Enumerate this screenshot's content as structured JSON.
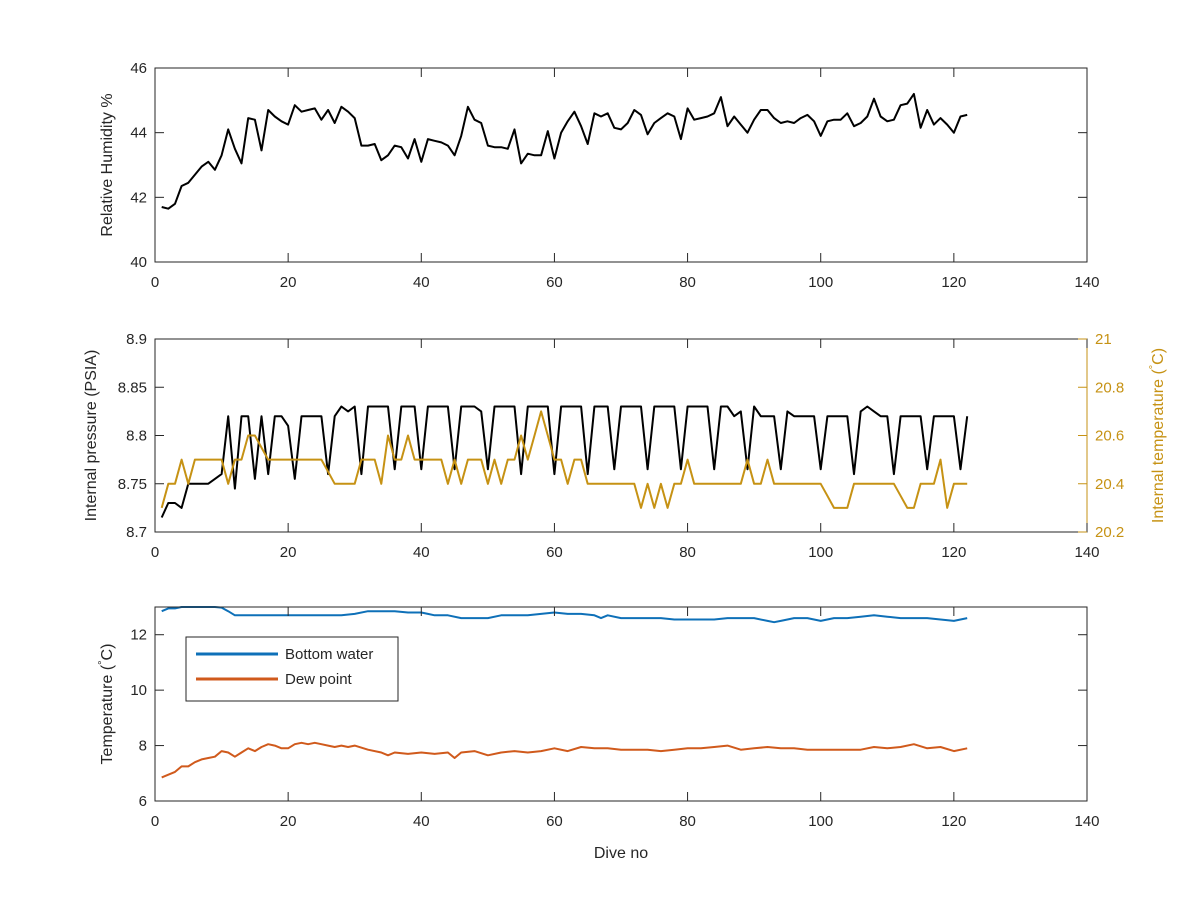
{
  "chart_data": [
    {
      "type": "line",
      "xlabel": "",
      "ylabel": "Relative Humidity %",
      "xlim": [
        0,
        140
      ],
      "ylim": [
        40,
        46
      ],
      "xticks": [
        0,
        20,
        40,
        60,
        80,
        100,
        120,
        140
      ],
      "yticks": [
        40,
        42,
        44,
        46
      ],
      "grid": false,
      "series": [
        {
          "color": "#000000",
          "x": [
            1,
            2,
            3,
            4,
            5,
            6,
            7,
            8,
            9,
            10,
            11,
            12,
            13,
            14,
            15,
            16,
            17,
            18,
            19,
            20,
            21,
            22,
            23,
            24,
            25,
            26,
            27,
            28,
            29,
            30,
            31,
            32,
            33,
            34,
            35,
            36,
            37,
            38,
            39,
            40,
            41,
            42,
            43,
            44,
            45,
            46,
            47,
            48,
            49,
            50,
            51,
            52,
            53,
            54,
            55,
            56,
            57,
            58,
            59,
            60,
            61,
            62,
            63,
            64,
            65,
            66,
            67,
            68,
            69,
            70,
            71,
            72,
            73,
            74,
            75,
            76,
            77,
            78,
            79,
            80,
            81,
            82,
            83,
            84,
            85,
            86,
            87,
            88,
            89,
            90,
            91,
            92,
            93,
            94,
            95,
            96,
            97,
            98,
            99,
            100,
            101,
            102,
            103,
            104,
            105,
            106,
            107,
            108,
            109,
            110,
            111,
            112,
            113,
            114,
            115,
            116,
            117,
            118,
            119,
            120,
            121,
            122
          ],
          "y": [
            41.7,
            41.65,
            41.8,
            42.35,
            42.45,
            42.7,
            42.95,
            43.1,
            42.85,
            43.3,
            44.1,
            43.5,
            43.05,
            44.45,
            44.4,
            43.45,
            44.7,
            44.5,
            44.35,
            44.25,
            44.85,
            44.65,
            44.7,
            44.75,
            44.4,
            44.7,
            44.3,
            44.8,
            44.65,
            44.45,
            43.6,
            43.6,
            43.65,
            43.15,
            43.3,
            43.6,
            43.55,
            43.2,
            43.8,
            43.1,
            43.8,
            43.75,
            43.7,
            43.6,
            43.3,
            43.9,
            44.8,
            44.4,
            44.3,
            43.6,
            43.55,
            43.55,
            43.5,
            44.1,
            43.05,
            43.35,
            43.3,
            43.3,
            44.05,
            43.2,
            44.0,
            44.35,
            44.65,
            44.2,
            43.65,
            44.6,
            44.5,
            44.6,
            44.15,
            44.1,
            44.3,
            44.7,
            44.55,
            43.95,
            44.3,
            44.45,
            44.6,
            44.5,
            43.8,
            44.75,
            44.4,
            44.45,
            44.5,
            44.6,
            45.1,
            44.2,
            44.5,
            44.25,
            44.0,
            44.4,
            44.7,
            44.7,
            44.45,
            44.3,
            44.35,
            44.3,
            44.45,
            44.55,
            44.35,
            43.9,
            44.35,
            44.4,
            44.4,
            44.6,
            44.2,
            44.3,
            44.5,
            45.05,
            44.5,
            44.35,
            44.4,
            44.85,
            44.9,
            45.2,
            44.15,
            44.7,
            44.25,
            44.45,
            44.25,
            44.0,
            44.5,
            44.55
          ]
        }
      ]
    },
    {
      "type": "line",
      "xlabel": "",
      "ylabel": "Internal pressure (PSIA)",
      "ylabel_right": "Internal temperature (°C)",
      "xlim": [
        0,
        140
      ],
      "ylim": [
        8.7,
        8.9
      ],
      "ylim_right": [
        20.2,
        21
      ],
      "xticks": [
        0,
        20,
        40,
        60,
        80,
        100,
        120,
        140
      ],
      "yticks": [
        "8.7",
        "8.75",
        "8.8",
        "8.85",
        "8.9"
      ],
      "yticks_right": [
        "20.2",
        "20.4",
        "20.6",
        "20.8",
        "21"
      ],
      "grid": false,
      "series": [
        {
          "color": "#000000",
          "axis": "left",
          "x": [
            1,
            2,
            3,
            4,
            5,
            6,
            7,
            8,
            9,
            10,
            11,
            12,
            13,
            14,
            15,
            16,
            17,
            18,
            19,
            20,
            21,
            22,
            23,
            24,
            25,
            26,
            27,
            28,
            29,
            30,
            31,
            32,
            33,
            34,
            35,
            36,
            37,
            38,
            39,
            40,
            41,
            42,
            43,
            44,
            45,
            46,
            47,
            48,
            49,
            50,
            51,
            52,
            53,
            54,
            55,
            56,
            57,
            58,
            59,
            60,
            61,
            62,
            63,
            64,
            65,
            66,
            67,
            68,
            69,
            70,
            71,
            72,
            73,
            74,
            75,
            76,
            77,
            78,
            79,
            80,
            81,
            82,
            83,
            84,
            85,
            86,
            87,
            88,
            89,
            90,
            91,
            92,
            93,
            94,
            95,
            96,
            97,
            98,
            99,
            100,
            101,
            102,
            103,
            104,
            105,
            106,
            107,
            108,
            109,
            110,
            111,
            112,
            113,
            114,
            115,
            116,
            117,
            118,
            119,
            120,
            121,
            122
          ],
          "y": [
            8.715,
            8.73,
            8.73,
            8.725,
            8.75,
            8.75,
            8.75,
            8.75,
            8.755,
            8.76,
            8.82,
            8.745,
            8.82,
            8.82,
            8.755,
            8.82,
            8.76,
            8.82,
            8.82,
            8.81,
            8.755,
            8.82,
            8.82,
            8.82,
            8.82,
            8.76,
            8.82,
            8.83,
            8.825,
            8.83,
            8.76,
            8.83,
            8.83,
            8.83,
            8.83,
            8.765,
            8.83,
            8.83,
            8.83,
            8.765,
            8.83,
            8.83,
            8.83,
            8.83,
            8.765,
            8.83,
            8.83,
            8.83,
            8.825,
            8.765,
            8.83,
            8.83,
            8.83,
            8.83,
            8.76,
            8.83,
            8.83,
            8.83,
            8.83,
            8.76,
            8.83,
            8.83,
            8.83,
            8.83,
            8.76,
            8.83,
            8.83,
            8.83,
            8.765,
            8.83,
            8.83,
            8.83,
            8.83,
            8.765,
            8.83,
            8.83,
            8.83,
            8.83,
            8.765,
            8.83,
            8.83,
            8.83,
            8.83,
            8.765,
            8.83,
            8.83,
            8.82,
            8.825,
            8.765,
            8.83,
            8.82,
            8.82,
            8.82,
            8.765,
            8.825,
            8.82,
            8.82,
            8.82,
            8.82,
            8.765,
            8.82,
            8.82,
            8.82,
            8.82,
            8.76,
            8.825,
            8.83,
            8.825,
            8.82,
            8.82,
            8.76,
            8.82,
            8.82,
            8.82,
            8.82,
            8.765,
            8.82,
            8.82,
            8.82,
            8.82,
            8.765,
            8.82
          ],
          "y_right": [
            20.3,
            20.4,
            20.4,
            20.5,
            20.4,
            20.5,
            20.5,
            20.5,
            20.5,
            20.5,
            20.4,
            20.5,
            20.5,
            20.6,
            20.6,
            20.55,
            20.5,
            20.5,
            20.5,
            20.5,
            20.5,
            20.5,
            20.5,
            20.5,
            20.5,
            20.45,
            20.4,
            20.4,
            20.4,
            20.4,
            20.5,
            20.5,
            20.5,
            20.4,
            20.6,
            20.5,
            20.5,
            20.6,
            20.5,
            20.5,
            20.5,
            20.5,
            20.5,
            20.4,
            20.5,
            20.4,
            20.5,
            20.5,
            20.5,
            20.4,
            20.5,
            20.4,
            20.5,
            20.5,
            20.6,
            20.5,
            20.6,
            20.7,
            20.6,
            20.5,
            20.5,
            20.4,
            20.5,
            20.5,
            20.4,
            20.4,
            20.4,
            20.4,
            20.4,
            20.4,
            20.4,
            20.4,
            20.3,
            20.4,
            20.3,
            20.4,
            20.3,
            20.4,
            20.4,
            20.5,
            20.4,
            20.4,
            20.4,
            20.4,
            20.4,
            20.4,
            20.4,
            20.4,
            20.5,
            20.4,
            20.4,
            20.5,
            20.4,
            20.4,
            20.4,
            20.4,
            20.4,
            20.4,
            20.4,
            20.4,
            20.35,
            20.3,
            20.3,
            20.3,
            20.4,
            20.4,
            20.4,
            20.4,
            20.4,
            20.4,
            20.4,
            20.35,
            20.3,
            20.3,
            20.4,
            20.4,
            20.4,
            20.5,
            20.3,
            20.4,
            20.4,
            20.4
          ],
          "y_right_color": "#c69214"
        }
      ]
    },
    {
      "type": "line",
      "xlabel": "Dive no",
      "ylabel": "Temperature (°C)",
      "xlim": [
        0,
        140
      ],
      "ylim": [
        6,
        13
      ],
      "xticks": [
        0,
        20,
        40,
        60,
        80,
        100,
        120,
        140
      ],
      "yticks": [
        6,
        8,
        10,
        12
      ],
      "grid": false,
      "legend": "top-left",
      "series": [
        {
          "name": "Bottom water",
          "color": "#0e70b8",
          "x": [
            1,
            2,
            3,
            4,
            5,
            6,
            7,
            8,
            9,
            10,
            11,
            12,
            14,
            16,
            20,
            24,
            28,
            30,
            32,
            34,
            36,
            38,
            40,
            41,
            42,
            44,
            46,
            48,
            50,
            52,
            54,
            56,
            58,
            60,
            62,
            64,
            66,
            67,
            68,
            70,
            72,
            74,
            76,
            78,
            80,
            82,
            84,
            86,
            88,
            90,
            92,
            93,
            94,
            96,
            98,
            100,
            102,
            104,
            106,
            108,
            110,
            112,
            114,
            116,
            118,
            120,
            122
          ],
          "y": [
            12.85,
            12.95,
            12.95,
            13.0,
            13.0,
            13.0,
            13.0,
            13.0,
            13.0,
            12.98,
            12.85,
            12.7,
            12.7,
            12.7,
            12.7,
            12.7,
            12.7,
            12.75,
            12.85,
            12.85,
            12.85,
            12.8,
            12.8,
            12.75,
            12.7,
            12.7,
            12.6,
            12.6,
            12.6,
            12.7,
            12.7,
            12.7,
            12.75,
            12.8,
            12.75,
            12.75,
            12.7,
            12.6,
            12.7,
            12.6,
            12.6,
            12.6,
            12.6,
            12.55,
            12.55,
            12.55,
            12.55,
            12.6,
            12.6,
            12.6,
            12.5,
            12.45,
            12.5,
            12.6,
            12.6,
            12.5,
            12.6,
            12.6,
            12.65,
            12.7,
            12.65,
            12.6,
            12.6,
            12.6,
            12.55,
            12.5,
            12.6
          ]
        },
        {
          "name": "Dew point",
          "color": "#d05a1c",
          "x": [
            1,
            2,
            3,
            4,
            5,
            6,
            7,
            8,
            9,
            10,
            11,
            12,
            13,
            14,
            15,
            16,
            17,
            18,
            19,
            20,
            21,
            22,
            23,
            24,
            25,
            26,
            27,
            28,
            29,
            30,
            32,
            34,
            35,
            36,
            38,
            40,
            42,
            44,
            45,
            46,
            48,
            50,
            52,
            54,
            56,
            58,
            60,
            62,
            64,
            66,
            68,
            70,
            72,
            74,
            76,
            78,
            80,
            82,
            84,
            86,
            88,
            90,
            92,
            94,
            96,
            98,
            100,
            102,
            104,
            106,
            108,
            110,
            112,
            114,
            116,
            118,
            120,
            122
          ],
          "y": [
            6.85,
            6.95,
            7.05,
            7.25,
            7.25,
            7.4,
            7.5,
            7.55,
            7.6,
            7.8,
            7.75,
            7.6,
            7.75,
            7.9,
            7.8,
            7.95,
            8.05,
            8.0,
            7.9,
            7.9,
            8.05,
            8.1,
            8.05,
            8.1,
            8.05,
            8.0,
            7.95,
            8.0,
            7.95,
            8.0,
            7.85,
            7.75,
            7.65,
            7.75,
            7.7,
            7.75,
            7.7,
            7.75,
            7.55,
            7.75,
            7.8,
            7.65,
            7.75,
            7.8,
            7.75,
            7.8,
            7.9,
            7.8,
            7.95,
            7.9,
            7.9,
            7.85,
            7.85,
            7.85,
            7.8,
            7.85,
            7.9,
            7.9,
            7.95,
            8.0,
            7.85,
            7.9,
            7.95,
            7.9,
            7.9,
            7.85,
            7.85,
            7.85,
            7.85,
            7.85,
            7.95,
            7.9,
            7.95,
            8.05,
            7.9,
            7.95,
            7.8,
            7.9
          ]
        }
      ]
    }
  ]
}
